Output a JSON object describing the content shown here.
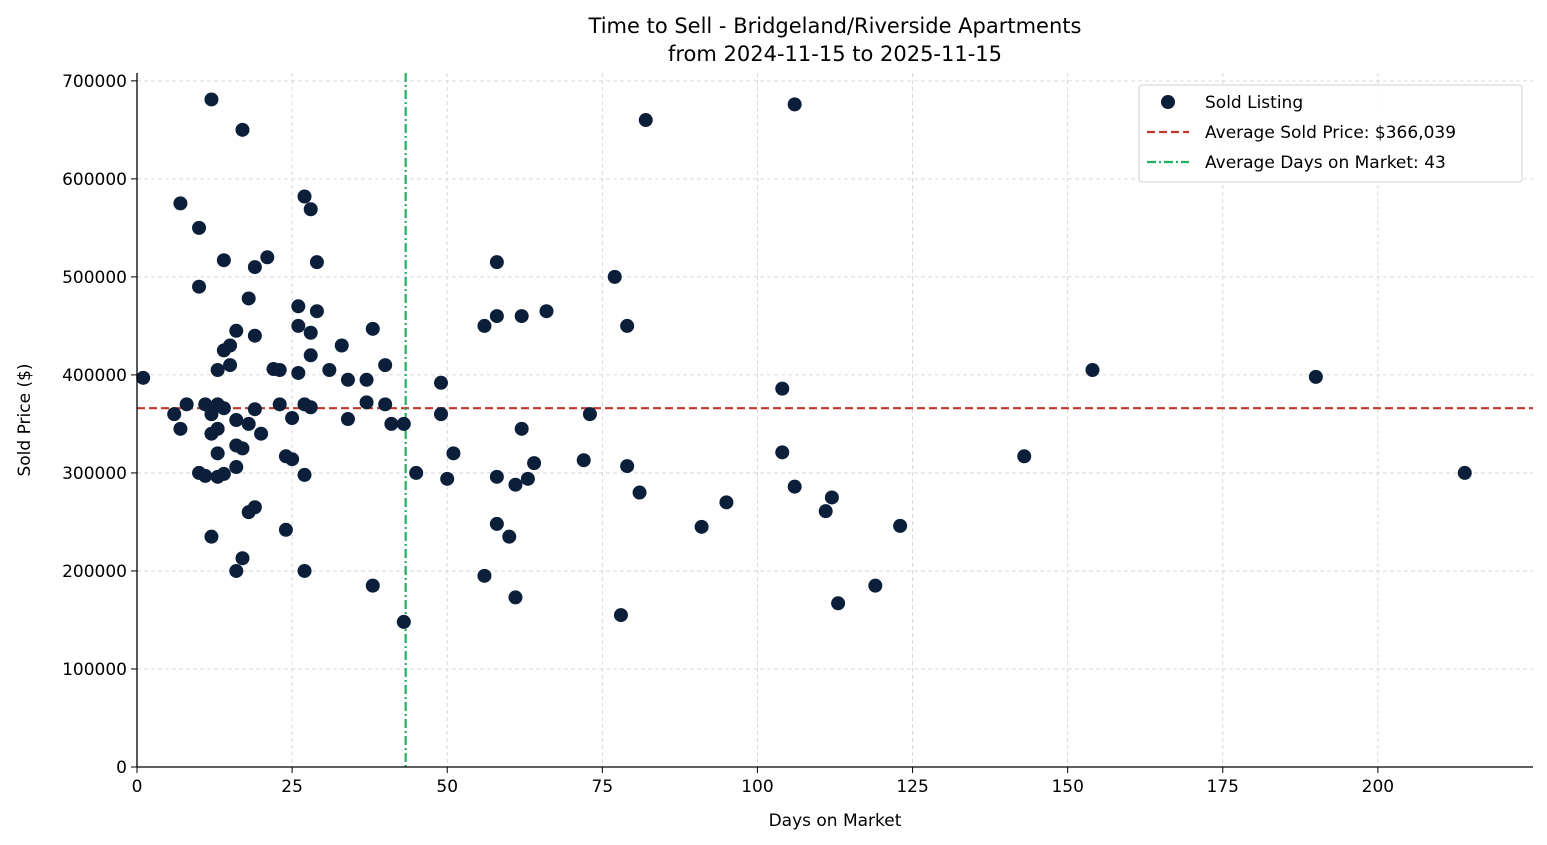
{
  "chart_data": {
    "type": "scatter",
    "title": "Time to Sell - Bridgeland/Riverside Apartments",
    "subtitle": "from 2024-11-15 to 2025-11-15",
    "xlabel": "Days on Market",
    "ylabel": "Sold Price ($)",
    "xlim": [
      0,
      225
    ],
    "ylim": [
      0,
      708000
    ],
    "xticks": [
      0,
      25,
      50,
      75,
      100,
      125,
      150,
      175,
      200
    ],
    "yticks": [
      0,
      100000,
      200000,
      300000,
      400000,
      500000,
      600000,
      700000
    ],
    "grid": true,
    "legend_placement": "top-right",
    "colors": {
      "points": "#0b1f3a",
      "avg_price": "#c0392b",
      "avg_days": "#27ae60",
      "grid": "#d0d0d0"
    },
    "series": [
      {
        "name": "Sold Listing",
        "points": [
          [
            1,
            397000
          ],
          [
            6,
            360000
          ],
          [
            7,
            575000
          ],
          [
            7,
            345000
          ],
          [
            8,
            370000
          ],
          [
            10,
            550000
          ],
          [
            10,
            490000
          ],
          [
            10,
            300000
          ],
          [
            11,
            370000
          ],
          [
            11,
            297000
          ],
          [
            12,
            681000
          ],
          [
            12,
            340000
          ],
          [
            12,
            360000
          ],
          [
            12,
            235000
          ],
          [
            13,
            405000
          ],
          [
            13,
            370000
          ],
          [
            13,
            345000
          ],
          [
            13,
            320000
          ],
          [
            13,
            296000
          ],
          [
            14,
            517000
          ],
          [
            14,
            425000
          ],
          [
            14,
            366000
          ],
          [
            14,
            299000
          ],
          [
            15,
            430000
          ],
          [
            15,
            410000
          ],
          [
            16,
            445000
          ],
          [
            16,
            354000
          ],
          [
            16,
            328000
          ],
          [
            16,
            306000
          ],
          [
            16,
            200000
          ],
          [
            17,
            650000
          ],
          [
            17,
            325000
          ],
          [
            17,
            213000
          ],
          [
            18,
            478000
          ],
          [
            18,
            350000
          ],
          [
            18,
            260000
          ],
          [
            19,
            510000
          ],
          [
            19,
            440000
          ],
          [
            19,
            365000
          ],
          [
            19,
            265000
          ],
          [
            20,
            340000
          ],
          [
            21,
            520000
          ],
          [
            22,
            406000
          ],
          [
            23,
            405000
          ],
          [
            23,
            370000
          ],
          [
            24,
            317000
          ],
          [
            24,
            242000
          ],
          [
            25,
            314000
          ],
          [
            25,
            356000
          ],
          [
            26,
            470000
          ],
          [
            26,
            450000
          ],
          [
            26,
            402000
          ],
          [
            27,
            582000
          ],
          [
            27,
            370000
          ],
          [
            27,
            298000
          ],
          [
            27,
            200000
          ],
          [
            28,
            569000
          ],
          [
            28,
            443000
          ],
          [
            28,
            420000
          ],
          [
            28,
            367000
          ],
          [
            29,
            515000
          ],
          [
            29,
            465000
          ],
          [
            31,
            405000
          ],
          [
            33,
            430000
          ],
          [
            34,
            395000
          ],
          [
            34,
            355000
          ],
          [
            37,
            395000
          ],
          [
            37,
            372000
          ],
          [
            38,
            447000
          ],
          [
            38,
            185000
          ],
          [
            40,
            410000
          ],
          [
            40,
            370000
          ],
          [
            41,
            350000
          ],
          [
            43,
            350000
          ],
          [
            43,
            148000
          ],
          [
            45,
            300000
          ],
          [
            49,
            392000
          ],
          [
            49,
            360000
          ],
          [
            50,
            294000
          ],
          [
            51,
            320000
          ],
          [
            56,
            450000
          ],
          [
            56,
            195000
          ],
          [
            58,
            515000
          ],
          [
            58,
            460000
          ],
          [
            58,
            296000
          ],
          [
            58,
            248000
          ],
          [
            60,
            235000
          ],
          [
            61,
            288000
          ],
          [
            61,
            173000
          ],
          [
            62,
            460000
          ],
          [
            62,
            345000
          ],
          [
            63,
            294000
          ],
          [
            64,
            310000
          ],
          [
            66,
            465000
          ],
          [
            72,
            313000
          ],
          [
            73,
            360000
          ],
          [
            77,
            500000
          ],
          [
            78,
            155000
          ],
          [
            79,
            450000
          ],
          [
            79,
            307000
          ],
          [
            81,
            280000
          ],
          [
            82,
            660000
          ],
          [
            91,
            245000
          ],
          [
            95,
            270000
          ],
          [
            104,
            386000
          ],
          [
            104,
            321000
          ],
          [
            106,
            676000
          ],
          [
            106,
            286000
          ],
          [
            111,
            261000
          ],
          [
            112,
            275000
          ],
          [
            113,
            167000
          ],
          [
            119,
            185000
          ],
          [
            123,
            246000
          ],
          [
            143,
            317000
          ],
          [
            154,
            405000
          ],
          [
            190,
            398000
          ],
          [
            214,
            300000
          ]
        ]
      }
    ],
    "reference_lines": {
      "avg_price": {
        "label": "Average Sold Price: $366,039",
        "value": 366039
      },
      "avg_days": {
        "label": "Average Days on Market: 43",
        "value": 43.3
      }
    }
  }
}
